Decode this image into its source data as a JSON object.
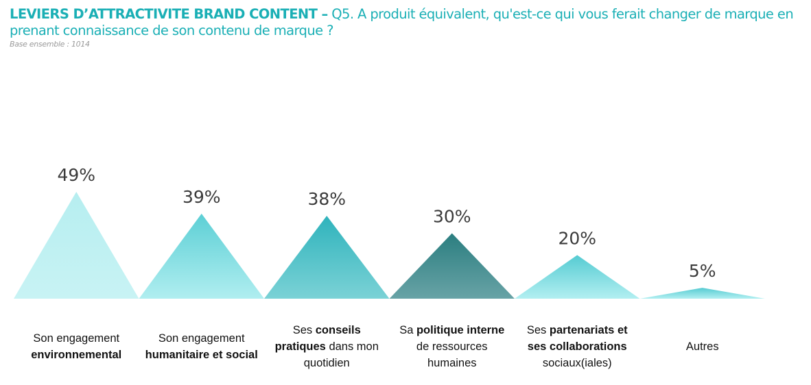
{
  "header": {
    "title_bold": "LEVIERS D’ATTRACTIVITE BRAND CONTENT –",
    "title_rest": " Q5. A produit équivalent, qu'est-ce qui vous ferait changer de marque en prenant connaissance de son contenu de marque ?",
    "base": "Base ensemble : 1014"
  },
  "chart_data": {
    "type": "bar",
    "mark": "triangle",
    "title": "LEVIERS D’ATTRACTIVITE BRAND CONTENT – Q5. A produit équivalent, qu'est-ce qui vous ferait changer de marque en prenant connaissance de son contenu de marque ?",
    "subtitle": "Base ensemble : 1014",
    "xlabel": "",
    "ylabel": "",
    "ylim": [
      0,
      50
    ],
    "grid": false,
    "unit": "%",
    "categories": [
      "Son engagement environnemental",
      "Son engagement humanitaire et social",
      "Ses conseils pratiques dans mon quotidien",
      "Sa politique interne de ressources humaines",
      "Ses partenariats et ses collaborations sociaux(iales)",
      "Autres"
    ],
    "values": [
      49,
      39,
      38,
      30,
      20,
      5
    ],
    "data_labels": [
      "49%",
      "39%",
      "38%",
      "30%",
      "20%",
      "5%"
    ],
    "category_parts": [
      [
        {
          "t": "Son engagement",
          "b": false
        },
        {
          "t": "\n",
          "b": false
        },
        {
          "t": "environnemental",
          "b": true
        }
      ],
      [
        {
          "t": "Son engagement",
          "b": false
        },
        {
          "t": "\n",
          "b": false
        },
        {
          "t": "humanitaire et social",
          "b": true
        }
      ],
      [
        {
          "t": "Ses ",
          "b": false
        },
        {
          "t": "conseils",
          "b": true
        },
        {
          "t": "\n",
          "b": false
        },
        {
          "t": "pratiques",
          "b": true
        },
        {
          "t": " dans mon",
          "b": false
        },
        {
          "t": "\n",
          "b": false
        },
        {
          "t": "quotidien",
          "b": false
        }
      ],
      [
        {
          "t": "Sa ",
          "b": false
        },
        {
          "t": "politique interne",
          "b": true
        },
        {
          "t": "\n",
          "b": false
        },
        {
          "t": "de ressources",
          "b": false
        },
        {
          "t": "\n",
          "b": false
        },
        {
          "t": "humaines",
          "b": false
        }
      ],
      [
        {
          "t": "Ses ",
          "b": false
        },
        {
          "t": "partenariats et",
          "b": true
        },
        {
          "t": "\n",
          "b": false
        },
        {
          "t": "ses collaborations",
          "b": true
        },
        {
          "t": "\n",
          "b": false
        },
        {
          "t": "sociaux(iales)",
          "b": false
        }
      ],
      [
        {
          "t": "Autres",
          "b": false
        }
      ]
    ],
    "colors": [
      {
        "top": "#b6eef0",
        "bottom": "#c8f3f4"
      },
      {
        "top": "#5ccfd5",
        "bottom": "#b0eef0"
      },
      {
        "top": "#2fb3bc",
        "bottom": "#7bd2d6"
      },
      {
        "top": "#2b7e80",
        "bottom": "#68a3a6"
      },
      {
        "top": "#55cbd2",
        "bottom": "#b2eff1"
      },
      {
        "top": "#55cbd2",
        "bottom": "#b2eff1"
      }
    ]
  }
}
